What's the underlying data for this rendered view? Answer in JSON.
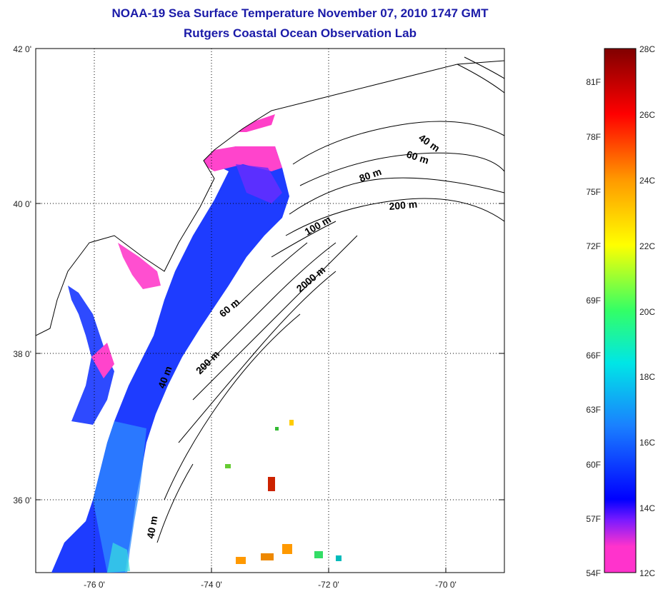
{
  "title": "NOAA-19 Sea Surface Temperature November 07, 2010 1747 GMT",
  "subtitle": "Rutgers Coastal Ocean Observation Lab",
  "axes": {
    "lat_labels": [
      "42 0'",
      "40 0'",
      "38 0'",
      "36 0'"
    ],
    "lon_labels": [
      "-76 0'",
      "-74 0'",
      "-72 0'",
      "-70 0'"
    ],
    "lat_range": [
      35.0,
      42.0
    ],
    "lon_range": [
      -77.0,
      -69.0
    ],
    "grid": "dotted"
  },
  "isobaths": [
    "40 m",
    "60 m",
    "80 m",
    "100 m",
    "200 m",
    "2000 m",
    "60 m",
    "200 m",
    "40 m",
    "40 m"
  ],
  "colorbar": {
    "range_c": [
      12,
      28
    ],
    "celsius_labels": [
      "28C",
      "26C",
      "24C",
      "22C",
      "20C",
      "18C",
      "16C",
      "14C",
      "12C"
    ],
    "fahrenheit_labels": [
      "81F",
      "78F",
      "75F",
      "72F",
      "69F",
      "66F",
      "63F",
      "60F",
      "57F",
      "54F"
    ],
    "colors": [
      "#ff33cc",
      "#7a1aff",
      "#0000ff",
      "#1a80ff",
      "#00e6e6",
      "#33ff66",
      "#ffff00",
      "#ff9900",
      "#ff0000",
      "#800000"
    ]
  }
}
